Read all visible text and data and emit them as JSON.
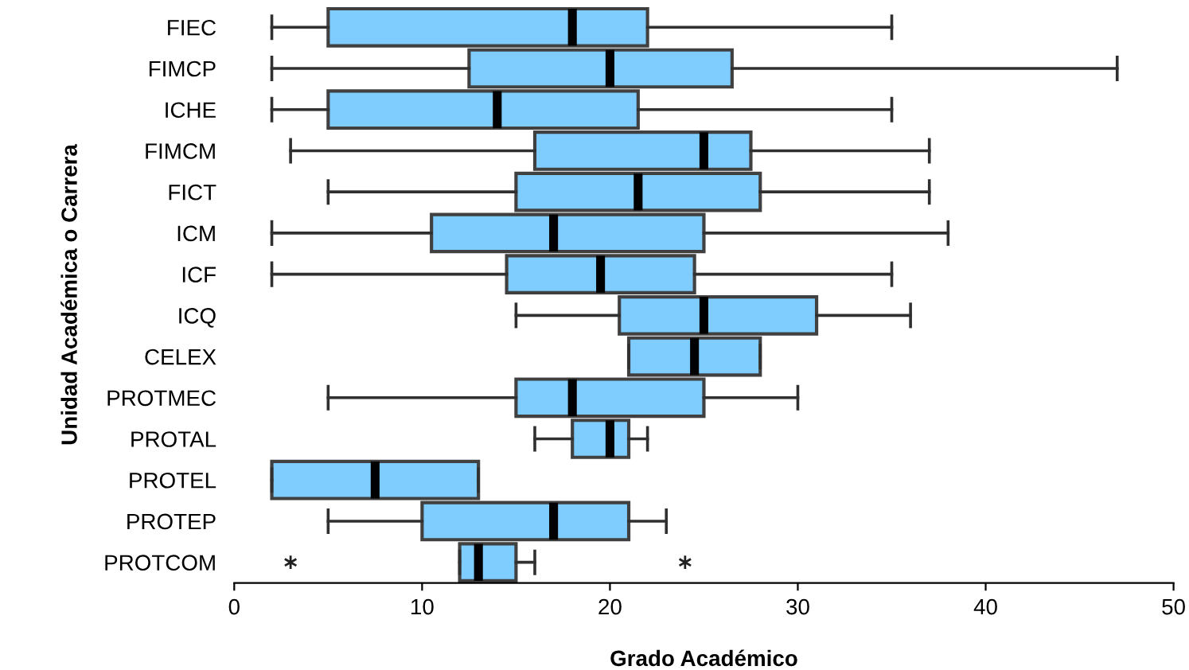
{
  "chart_data": {
    "type": "box",
    "orientation": "horizontal",
    "xlabel": "Grado Académico",
    "ylabel": "Unidad Académica o Carrera",
    "categories": [
      "FIEC",
      "FIMCP",
      "ICHE",
      "FIMCM",
      "FICT",
      "ICM",
      "ICF",
      "ICQ",
      "CELEX",
      "PROTMEC",
      "PROTAL",
      "PROTEL",
      "PROTEP",
      "PROTCOM"
    ],
    "color": "#7fccff",
    "boxes": [
      {
        "low": 2,
        "q1": 5,
        "median": 18,
        "q3": 22,
        "high": 35
      },
      {
        "low": 2,
        "q1": 12.5,
        "median": 20,
        "q3": 26.5,
        "high": 47
      },
      {
        "low": 2,
        "q1": 5,
        "median": 14,
        "q3": 21.5,
        "high": 35
      },
      {
        "low": 3,
        "q1": 16,
        "median": 25,
        "q3": 27.5,
        "high": 37
      },
      {
        "low": 5,
        "q1": 15,
        "median": 21.5,
        "q3": 28,
        "high": 37
      },
      {
        "low": 2,
        "q1": 10.5,
        "median": 17,
        "q3": 25,
        "high": 38
      },
      {
        "low": 2,
        "q1": 14.5,
        "median": 19.5,
        "q3": 24.5,
        "high": 35
      },
      {
        "low": 15,
        "q1": 20.5,
        "median": 25,
        "q3": 31,
        "high": 36
      },
      {
        "low": 21,
        "q1": 21,
        "median": 24.5,
        "q3": 28,
        "high": 28
      },
      {
        "low": 5,
        "q1": 15,
        "median": 18,
        "q3": 25,
        "high": 30
      },
      {
        "low": 16,
        "q1": 18,
        "median": 20,
        "q3": 21,
        "high": 22
      },
      {
        "low": 2,
        "q1": 2,
        "median": 7.5,
        "q3": 13,
        "high": 13
      },
      {
        "low": 5,
        "q1": 10,
        "median": 17,
        "q3": 21,
        "high": 23
      },
      {
        "low": 12,
        "q1": 12,
        "median": 13,
        "q3": 15,
        "high": 16,
        "outliers": [
          3,
          24
        ]
      }
    ],
    "xlim": [
      0,
      50
    ],
    "xticks": [
      0,
      10,
      20,
      30,
      40,
      50
    ],
    "grid": false,
    "legend": false
  }
}
